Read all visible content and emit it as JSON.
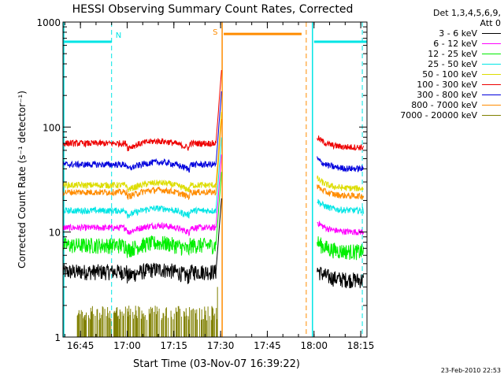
{
  "chart_data": {
    "type": "line",
    "title": "HESSI Observing Summary Count Rates, Corrected",
    "xlabel": "Start Time (03-Nov-07 16:39:22)",
    "ylabel": "Corrected Count Rate (s⁻¹ detector⁻¹)",
    "yscale": "log",
    "ylim": [
      1,
      1000
    ],
    "xlim_minutes_after_1630": [
      9.4,
      107
    ],
    "x_ticks": [
      {
        "label": "16:45",
        "t": 15
      },
      {
        "label": "17:00",
        "t": 30
      },
      {
        "label": "17:15",
        "t": 45
      },
      {
        "label": "17:30",
        "t": 60
      },
      {
        "label": "17:45",
        "t": 75
      },
      {
        "label": "18:00",
        "t": 90
      },
      {
        "label": "18:15",
        "t": 105
      }
    ],
    "y_ticks": [
      {
        "label": "1",
        "v": 1
      },
      {
        "label": "10",
        "v": 10
      },
      {
        "label": "100",
        "v": 100
      },
      {
        "label": "1000",
        "v": 1000
      }
    ],
    "legend_header": [
      "Det 1,3,4,5,6,9,",
      "Att 0"
    ],
    "series": [
      {
        "name": "3 - 6 keV",
        "color": "#000000",
        "pre": 4.2,
        "post": 3.5
      },
      {
        "name": "6 - 12 keV",
        "color": "#ff00ff",
        "pre": 11,
        "post": 10
      },
      {
        "name": "12 - 25 keV",
        "color": "#00ee00",
        "pre": 7.5,
        "post": 6.5
      },
      {
        "name": "25 - 50 keV",
        "color": "#00e5e5",
        "pre": 16,
        "post": 16
      },
      {
        "name": "50 - 100 keV",
        "color": "#dddd00",
        "pre": 28,
        "post": 26
      },
      {
        "name": "100 - 300 keV",
        "color": "#ee0000",
        "pre": 70,
        "post": 64
      },
      {
        "name": "300 - 800 keV",
        "color": "#0000dd",
        "pre": 44,
        "post": 40
      },
      {
        "name": "800 - 7000 keV",
        "color": "#ff8c00",
        "pre": 24,
        "post": 22
      },
      {
        "name": "7000 - 20000 keV",
        "color": "#808000",
        "pre": 1.6,
        "post": null
      }
    ],
    "annotations": [
      {
        "label": "N",
        "color": "#00e5e5"
      },
      {
        "label": "S",
        "color": "#ff8c00"
      }
    ],
    "timestamp": "23-Feb-2010 22:53"
  }
}
